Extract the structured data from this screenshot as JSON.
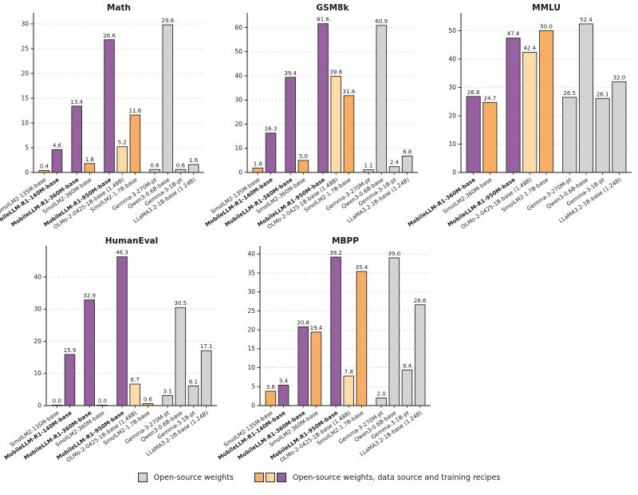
{
  "colors": {
    "purple": "#96619e",
    "orange": "#f6ae64",
    "pale_orange": "#fbdca8",
    "gray": "#d3d3d3",
    "edge": "#2b2b2b",
    "axis": "#1a1a1a",
    "grid": "#cfcfcf",
    "text": "#1a1a1a"
  },
  "legend": {
    "items": [
      {
        "label": "Open-source weights",
        "swatch_colors": [
          "gray"
        ]
      },
      {
        "label": "Open-source weights, data source and training recipes",
        "swatch_colors": [
          "orange",
          "pale_orange",
          "purple"
        ]
      }
    ]
  },
  "chart_data": [
    {
      "type": "bar",
      "title": "Math",
      "categories": [
        "SmolLM2-135M-base",
        "MobileLLM-R1-140M-base",
        "MobileLLM-R1-360M-base",
        "SmolLM2-360M-base",
        "MobileLLM-R1-950M-base",
        "OLMo-2-0425-1B-base (1.48B)",
        "SmolLM2-1.7B-base",
        "Gemma-3-270M-pt",
        "Qwen3-0.6B-base",
        "Gemma-3-1B-pt",
        "LLaMA3.2-1B-base (1.24B)"
      ],
      "values": [
        0.4,
        4.6,
        13.4,
        1.8,
        26.8,
        5.2,
        11.6,
        0.6,
        29.8,
        0.6,
        1.6
      ],
      "bar_colors": [
        "orange",
        "purple",
        "purple",
        "orange",
        "purple",
        "pale_orange",
        "orange",
        "gray",
        "gray",
        "gray",
        "gray"
      ],
      "bold_labels": [
        false,
        true,
        true,
        false,
        true,
        false,
        false,
        false,
        false,
        false,
        false
      ],
      "groups": [
        2,
        2,
        3,
        4
      ],
      "yticks": [
        0,
        5,
        10,
        15,
        20,
        25,
        30
      ],
      "ylim": [
        0,
        31.6
      ],
      "xlabel": "",
      "ylabel": "",
      "grid": "dashed-horizontal",
      "legend_position": "figure-bottom"
    },
    {
      "type": "bar",
      "title": "GSM8k",
      "categories": [
        "SmolLM2-135M-base",
        "MobileLLM-R1-140M-base",
        "MobileLLM-R1-360M-base",
        "SmolLM2-360M-base",
        "MobileLLM-R1-950M-base",
        "OLMo-2-0425-1B-base (1.48B)",
        "SmolLM2-1.7B-base",
        "Gemma-3-270M-pt",
        "Qwen3-0.6B-base",
        "Gemma-3-1B-pt",
        "LLaMA3.2-1B-base (1.24B)"
      ],
      "values": [
        1.8,
        16.3,
        39.4,
        5.0,
        61.6,
        39.8,
        31.8,
        1.1,
        60.9,
        2.4,
        6.8
      ],
      "bar_colors": [
        "orange",
        "purple",
        "purple",
        "orange",
        "purple",
        "pale_orange",
        "orange",
        "gray",
        "gray",
        "gray",
        "gray"
      ],
      "bold_labels": [
        false,
        true,
        true,
        false,
        true,
        false,
        false,
        false,
        false,
        false,
        false
      ],
      "groups": [
        2,
        2,
        3,
        4
      ],
      "yticks": [
        0,
        10,
        20,
        30,
        40,
        50,
        60
      ],
      "ylim": [
        0,
        64.8
      ],
      "xlabel": "",
      "ylabel": "",
      "grid": "dashed-horizontal",
      "legend_position": "figure-bottom"
    },
    {
      "type": "bar",
      "title": "MMLU",
      "categories": [
        "MobileLLM-R1-360M-base",
        "SmolLM2-360M-base",
        "MobileLLM-R1-950M-base",
        "OLMo-2-0425-1B-base (1.48B)",
        "SmolLM2-1.7B-base",
        "Gemma-3-270M-pt",
        "Qwen3-0.6B-base",
        "Gemma-3-1B-pt",
        "LLaMA3.2-1B-base (1.24B)"
      ],
      "values": [
        26.8,
        24.7,
        47.4,
        42.4,
        50.0,
        26.5,
        52.4,
        26.1,
        32.0
      ],
      "bar_colors": [
        "purple",
        "orange",
        "purple",
        "pale_orange",
        "orange",
        "gray",
        "gray",
        "gray",
        "gray"
      ],
      "bold_labels": [
        true,
        false,
        true,
        false,
        false,
        false,
        false,
        false,
        false
      ],
      "groups": [
        2,
        3,
        4
      ],
      "yticks": [
        0,
        10,
        20,
        30,
        40,
        50
      ],
      "ylim": [
        0,
        55.2
      ],
      "xlabel": "",
      "ylabel": "",
      "grid": "dashed-horizontal",
      "legend_position": "figure-bottom"
    },
    {
      "type": "bar",
      "title": "HumanEval",
      "categories": [
        "SmolLM2-135M-base",
        "MobileLLM-R1-140M-base",
        "MobileLLM-R1-360M-base",
        "SmolLM2-360M-base",
        "MobileLLM-R1-950M-base",
        "OLMo-2-0425-1B-base (1.48B)",
        "SmolLM2-1.7B-base",
        "Gemma-3-270M-pt",
        "Qwen3-0.6B-base",
        "Gemma-3-1B-pt",
        "LLaMA3.2-1B-base (1.24B)"
      ],
      "values": [
        0.0,
        15.9,
        32.9,
        0.0,
        46.3,
        6.7,
        0.6,
        3.1,
        30.5,
        6.1,
        17.1
      ],
      "bar_colors": [
        "orange",
        "purple",
        "purple",
        "orange",
        "purple",
        "pale_orange",
        "orange",
        "gray",
        "gray",
        "gray",
        "gray"
      ],
      "bold_labels": [
        false,
        true,
        true,
        false,
        true,
        false,
        false,
        false,
        false,
        false,
        false
      ],
      "groups": [
        2,
        2,
        3,
        4
      ],
      "yticks": [
        0,
        10,
        20,
        30,
        40
      ],
      "ylim": [
        0,
        48.7
      ],
      "xlabel": "",
      "ylabel": "",
      "grid": "dashed-horizontal",
      "legend_position": "figure-bottom"
    },
    {
      "type": "bar",
      "title": "MBPP",
      "categories": [
        "SmolLM2-135M-base",
        "MobileLLM-R1-140M-base",
        "MobileLLM-R1-360M-base",
        "SmolLM2-360M-base",
        "MobileLLM-R1-950M-base",
        "OLMo-2-0425-1B-base (1.48B)",
        "SmolLM2-1.7B-base",
        "Gemma-3-270M-pt",
        "Qwen3-0.6B-base",
        "Gemma-3-1B-pt",
        "LLaMA3.2-1B-base (1.24B)"
      ],
      "values": [
        3.8,
        5.4,
        20.8,
        19.4,
        39.2,
        7.8,
        35.4,
        2.0,
        39.0,
        9.4,
        26.6
      ],
      "bar_colors": [
        "orange",
        "purple",
        "purple",
        "orange",
        "purple",
        "pale_orange",
        "orange",
        "gray",
        "gray",
        "gray",
        "gray"
      ],
      "bold_labels": [
        false,
        true,
        true,
        false,
        true,
        false,
        false,
        false,
        false,
        false,
        false
      ],
      "groups": [
        2,
        2,
        3,
        4
      ],
      "yticks": [
        0,
        5,
        10,
        15,
        20,
        25,
        30,
        35,
        40
      ],
      "ylim": [
        0,
        41.3
      ],
      "xlabel": "",
      "ylabel": "",
      "grid": "dashed-horizontal",
      "legend_position": "figure-bottom"
    }
  ]
}
